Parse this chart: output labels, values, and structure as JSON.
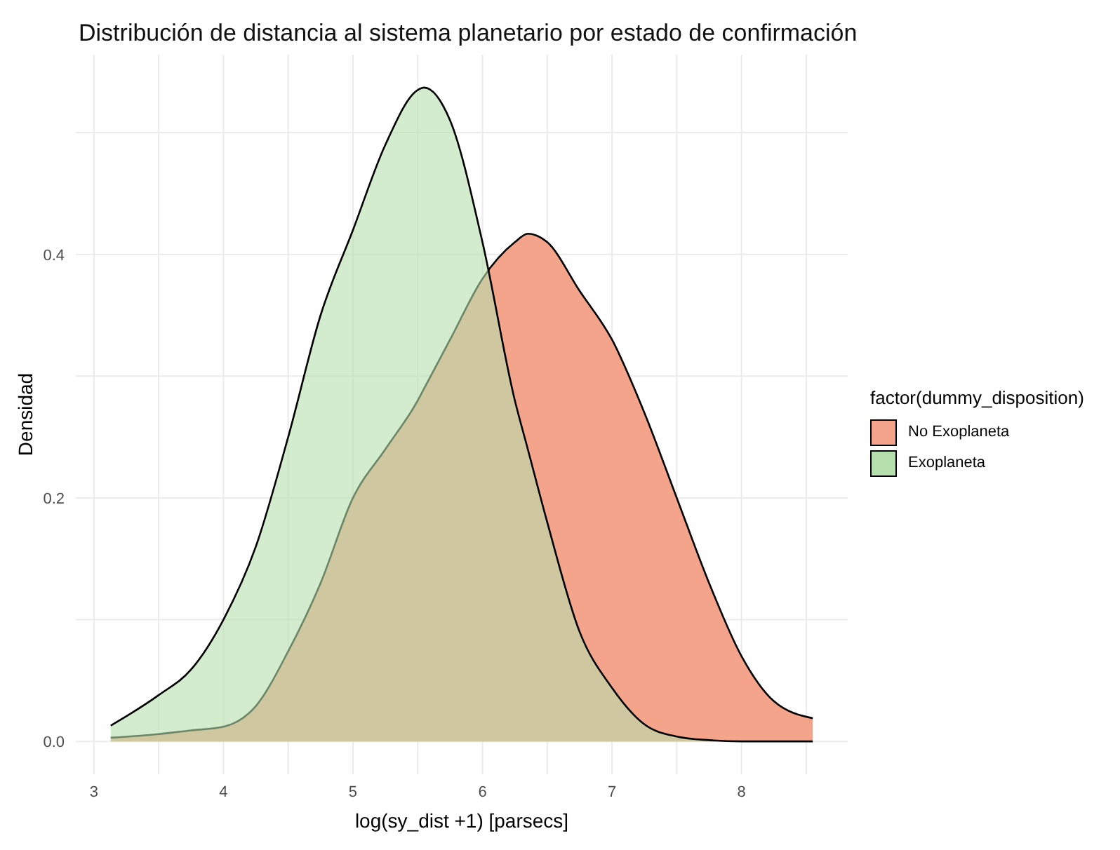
{
  "chart_data": {
    "type": "area",
    "title": "Distribución de distancia al sistema planetario por estado de confirmación",
    "xlabel": "log(sy_dist +1) [parsecs]",
    "ylabel": "Densidad",
    "legend_title": "factor(dummy_disposition)",
    "legend": "right",
    "grid": true,
    "x": [
      3.13,
      3.5,
      3.75,
      4,
      4.25,
      4.5,
      4.75,
      5,
      5.25,
      5.5,
      5.55,
      5.75,
      6,
      6.25,
      6.35,
      6.5,
      6.75,
      7,
      7.25,
      7.5,
      7.75,
      8,
      8.25,
      8.55
    ],
    "series": [
      {
        "name": "No Exoplaneta",
        "color": "#f4a48a",
        "values": [
          0.003,
          0.006,
          0.009,
          0.012,
          0.029,
          0.074,
          0.13,
          0.2,
          0.24,
          0.28,
          0.29,
          0.33,
          0.38,
          0.41,
          0.417,
          0.41,
          0.37,
          0.33,
          0.27,
          0.2,
          0.13,
          0.07,
          0.033,
          0.019
        ]
      },
      {
        "name": "Exoplaneta",
        "color": "#b5e0ad",
        "values": [
          0.013,
          0.038,
          0.059,
          0.1,
          0.16,
          0.25,
          0.35,
          0.42,
          0.49,
          0.535,
          0.537,
          0.51,
          0.41,
          0.28,
          0.24,
          0.18,
          0.09,
          0.044,
          0.014,
          0.004,
          0.001,
          0,
          0,
          0
        ]
      }
    ],
    "xlim": [
      2.86,
      8.82
    ],
    "ylim": [
      -0.027,
      0.564
    ],
    "xticks": [
      3,
      {
        "value": 3.5,
        "label": null
      },
      4,
      {
        "value": 4.5,
        "label": null
      },
      5,
      {
        "value": 5.5,
        "label": null
      },
      6,
      {
        "value": 6.5,
        "label": null
      },
      7,
      {
        "value": 7.5,
        "label": null
      },
      8,
      {
        "value": 8.5,
        "label": null
      }
    ],
    "yticks": [
      {
        "value": 0,
        "label": "0.0"
      },
      {
        "value": 0.1,
        "label": null
      },
      {
        "value": 0.2,
        "label": "0.2"
      },
      {
        "value": 0.3,
        "label": null
      },
      {
        "value": 0.4,
        "label": "0.4"
      },
      {
        "value": 0.5,
        "label": null
      }
    ]
  }
}
